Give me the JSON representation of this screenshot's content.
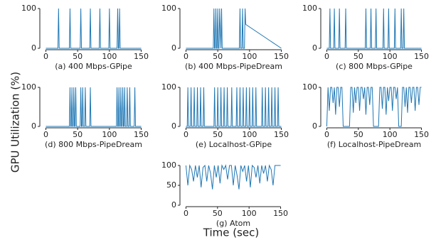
{
  "ylabel": "GPU Utilization (%)",
  "xlabel": "Time (sec)",
  "chart_data": [
    {
      "type": "line",
      "title": "(a) 400 Mbps-GPipe",
      "color": "#1f77b4",
      "xlim": [
        -5,
        155
      ],
      "ylim": [
        0,
        100
      ],
      "xticks": [
        0,
        50,
        100,
        150
      ],
      "yticks": [
        0,
        100
      ],
      "x": [
        0,
        19,
        20,
        21,
        37,
        38,
        39,
        54,
        55,
        56,
        69,
        70,
        71,
        84,
        85,
        86,
        99,
        100,
        101,
        112,
        113,
        114,
        115,
        116,
        117,
        150
      ],
      "values": [
        0,
        0,
        100,
        0,
        0,
        100,
        0,
        0,
        100,
        0,
        0,
        100,
        0,
        0,
        100,
        0,
        0,
        100,
        0,
        0,
        100,
        0,
        0,
        100,
        0,
        0
      ]
    },
    {
      "type": "line",
      "title": "(b) 400 Mbps-PipeDream",
      "color": "#1f77b4",
      "xlim": [
        -5,
        155
      ],
      "ylim": [
        0,
        100
      ],
      "xticks": [
        0,
        50,
        100,
        150
      ],
      "yticks": [
        0,
        100
      ],
      "x": [
        0,
        43,
        44,
        45,
        46,
        47,
        48,
        49,
        50,
        51,
        52,
        53,
        54,
        55,
        56,
        57,
        84,
        85,
        86,
        88,
        89,
        90,
        92,
        93,
        94,
        150
      ],
      "values": [
        0,
        0,
        100,
        0,
        0,
        100,
        0,
        0,
        100,
        0,
        0,
        100,
        40,
        0,
        100,
        0,
        0,
        100,
        0,
        0,
        100,
        0,
        0,
        100,
        60,
        0
      ]
    },
    {
      "type": "line",
      "title": "(c) 800 Mbps-GPipe",
      "color": "#1f77b4",
      "xlim": [
        -5,
        155
      ],
      "ylim": [
        0,
        100
      ],
      "xticks": [
        0,
        50,
        100,
        150
      ],
      "yticks": [
        0,
        100
      ],
      "x": [
        0,
        4,
        5,
        6,
        11,
        12,
        13,
        19,
        20,
        21,
        29,
        30,
        31,
        61,
        62,
        63,
        69,
        70,
        71,
        77,
        78,
        79,
        89,
        90,
        91,
        97,
        98,
        99,
        107,
        108,
        109,
        117,
        118,
        119,
        121,
        122,
        123,
        150
      ],
      "values": [
        0,
        0,
        100,
        0,
        0,
        100,
        0,
        0,
        100,
        0,
        0,
        100,
        0,
        0,
        100,
        0,
        0,
        100,
        0,
        0,
        100,
        0,
        0,
        100,
        0,
        0,
        100,
        0,
        0,
        100,
        0,
        0,
        100,
        0,
        0,
        100,
        0,
        0
      ]
    },
    {
      "type": "line",
      "title": "(d) 800 Mbps-PipeDream",
      "color": "#1f77b4",
      "xlim": [
        -5,
        155
      ],
      "ylim": [
        0,
        100
      ],
      "xticks": [
        0,
        50,
        100,
        150
      ],
      "yticks": [
        0,
        100
      ],
      "x": [
        0,
        37,
        38,
        39,
        40,
        41,
        42,
        43,
        44,
        45,
        46,
        47,
        48,
        54,
        55,
        56,
        57,
        58,
        59,
        61,
        62,
        63,
        69,
        70,
        71,
        111,
        112,
        113,
        114,
        115,
        116,
        117,
        118,
        119,
        120,
        121,
        122,
        123,
        124,
        125,
        127,
        128,
        129,
        131,
        132,
        133,
        139,
        140,
        141,
        150
      ],
      "values": [
        0,
        0,
        100,
        0,
        0,
        100,
        0,
        0,
        100,
        0,
        0,
        100,
        0,
        0,
        100,
        0,
        0,
        100,
        0,
        0,
        100,
        0,
        0,
        100,
        0,
        0,
        100,
        0,
        0,
        100,
        0,
        0,
        100,
        0,
        0,
        100,
        0,
        0,
        100,
        0,
        0,
        100,
        0,
        0,
        100,
        0,
        0,
        100,
        0,
        0
      ]
    },
    {
      "type": "line",
      "title": "(e) Localhost-GPipe",
      "color": "#1f77b4",
      "xlim": [
        -5,
        155
      ],
      "ylim": [
        0,
        100
      ],
      "xticks": [
        0,
        50,
        100,
        150
      ],
      "yticks": [
        0,
        100
      ],
      "x": [
        0,
        2,
        3,
        4,
        7,
        8,
        9,
        12,
        13,
        14,
        17,
        18,
        19,
        22,
        23,
        24,
        27,
        28,
        29,
        44,
        45,
        46,
        49,
        50,
        51,
        54,
        55,
        56,
        59,
        60,
        61,
        64,
        65,
        66,
        71,
        72,
        73,
        79,
        80,
        81,
        84,
        85,
        86,
        89,
        90,
        91,
        94,
        95,
        96,
        99,
        100,
        101,
        104,
        105,
        106,
        109,
        110,
        111,
        119,
        120,
        121,
        124,
        125,
        126,
        129,
        130,
        131,
        134,
        135,
        136,
        139,
        140,
        141,
        144,
        145,
        146,
        150
      ],
      "values": [
        0,
        0,
        100,
        0,
        0,
        100,
        0,
        0,
        100,
        0,
        0,
        100,
        0,
        0,
        100,
        0,
        0,
        100,
        0,
        0,
        100,
        0,
        0,
        100,
        0,
        0,
        100,
        0,
        0,
        100,
        0,
        0,
        100,
        0,
        0,
        100,
        0,
        0,
        100,
        0,
        0,
        100,
        0,
        0,
        100,
        0,
        0,
        100,
        0,
        0,
        100,
        0,
        0,
        100,
        0,
        0,
        100,
        0,
        0,
        100,
        0,
        0,
        100,
        0,
        0,
        100,
        0,
        0,
        100,
        0,
        0,
        100,
        0,
        0,
        100,
        0,
        0
      ]
    },
    {
      "type": "line",
      "title": "(f) Localhost-PipeDream",
      "color": "#1f77b4",
      "xlim": [
        -5,
        155
      ],
      "ylim": [
        0,
        100
      ],
      "xticks": [
        0,
        50,
        100,
        150
      ],
      "yticks": [
        0,
        100
      ],
      "x": [
        0,
        2,
        4,
        6,
        8,
        10,
        12,
        14,
        16,
        18,
        20,
        22,
        24,
        26,
        28,
        30,
        32,
        34,
        36,
        38,
        40,
        42,
        44,
        46,
        48,
        50,
        52,
        54,
        56,
        58,
        60,
        62,
        64,
        66,
        68,
        70,
        72,
        74,
        76,
        78,
        80,
        82,
        84,
        86,
        88,
        90,
        92,
        94,
        96,
        98,
        100,
        102,
        104,
        106,
        108,
        110,
        112,
        114,
        116,
        118,
        120,
        122,
        124,
        126,
        128,
        130,
        132,
        134,
        136,
        138,
        140,
        142,
        144,
        146,
        148,
        150
      ],
      "values": [
        0,
        100,
        40,
        100,
        100,
        60,
        100,
        30,
        100,
        100,
        50,
        100,
        100,
        0,
        0,
        0,
        0,
        0,
        0,
        100,
        100,
        35,
        100,
        60,
        100,
        100,
        40,
        100,
        100,
        70,
        100,
        30,
        100,
        100,
        55,
        100,
        100,
        0,
        0,
        0,
        0,
        0,
        100,
        100,
        45,
        100,
        100,
        30,
        100,
        65,
        100,
        100,
        40,
        100,
        100,
        70,
        100,
        0,
        0,
        0,
        100,
        100,
        50,
        100,
        35,
        100,
        100,
        60,
        100,
        100,
        40,
        100,
        100,
        55,
        100,
        100
      ]
    },
    {
      "type": "line",
      "title": "(g) Atom",
      "color": "#1f77b4",
      "xlim": [
        -5,
        155
      ],
      "ylim": [
        0,
        100
      ],
      "xticks": [
        0,
        50,
        100,
        150
      ],
      "yticks": [
        0,
        50,
        100
      ],
      "x": [
        0,
        3,
        6,
        9,
        12,
        15,
        18,
        21,
        24,
        27,
        30,
        33,
        36,
        39,
        42,
        45,
        48,
        51,
        54,
        57,
        60,
        63,
        66,
        69,
        72,
        75,
        78,
        81,
        84,
        87,
        90,
        93,
        96,
        99,
        102,
        105,
        108,
        111,
        114,
        117,
        120,
        123,
        126,
        129,
        132,
        135,
        138,
        141,
        144,
        147,
        150
      ],
      "values": [
        100,
        50,
        100,
        90,
        60,
        100,
        70,
        100,
        45,
        95,
        100,
        60,
        100,
        80,
        40,
        100,
        70,
        100,
        55,
        100,
        90,
        100,
        65,
        100,
        100,
        50,
        100,
        75,
        40,
        100,
        85,
        100,
        60,
        100,
        45,
        100,
        95,
        70,
        100,
        55,
        100,
        80,
        100,
        60,
        100,
        90,
        50,
        100,
        100,
        100,
        100
      ]
    }
  ]
}
